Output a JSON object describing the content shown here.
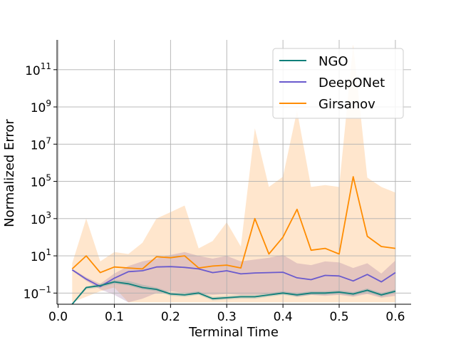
{
  "chart_data": {
    "type": "line",
    "title": "",
    "xlabel": "Terminal Time",
    "ylabel": "Normalized Error",
    "yscale": "log",
    "xlim": [
      -0.002,
      0.628
    ],
    "ylim_log10": [
      -1.6,
      12.6
    ],
    "grid": true,
    "legend_position": "top-right",
    "x_ticks": [
      {
        "value": 0.0,
        "label": "0.0"
      },
      {
        "value": 0.1,
        "label": "0.1"
      },
      {
        "value": 0.2,
        "label": "0.2"
      },
      {
        "value": 0.3,
        "label": "0.3"
      },
      {
        "value": 0.4,
        "label": "0.4"
      },
      {
        "value": 0.5,
        "label": "0.5"
      },
      {
        "value": 0.6,
        "label": "0.6"
      }
    ],
    "y_ticks": [
      {
        "exp": -1,
        "base": "10",
        "sup": "−1"
      },
      {
        "exp": 1,
        "base": "10",
        "sup": "1"
      },
      {
        "exp": 3,
        "base": "10",
        "sup": "3"
      },
      {
        "exp": 5,
        "base": "10",
        "sup": "5"
      },
      {
        "exp": 7,
        "base": "10",
        "sup": "7"
      },
      {
        "exp": 9,
        "base": "10",
        "sup": "9"
      },
      {
        "exp": 11,
        "base": "10",
        "sup": "11"
      }
    ],
    "x": [
      0.025,
      0.05,
      0.075,
      0.1,
      0.125,
      0.15,
      0.175,
      0.2,
      0.225,
      0.25,
      0.275,
      0.3,
      0.325,
      0.35,
      0.375,
      0.4,
      0.425,
      0.45,
      0.475,
      0.5,
      0.525,
      0.55,
      0.575,
      0.6
    ],
    "series": [
      {
        "name": "Girsanov",
        "color": "#ff8c00",
        "band_color": "#ffa64d",
        "log10_values": [
          0.3,
          1.0,
          0.1,
          0.4,
          0.35,
          0.3,
          0.95,
          0.9,
          1.0,
          0.35,
          0.45,
          0.5,
          0.35,
          3.0,
          1.1,
          2.0,
          3.5,
          1.3,
          1.4,
          1.1,
          5.25,
          2.05,
          1.5,
          1.4
        ],
        "log10_upper": [
          0.6,
          3.0,
          0.7,
          1.2,
          1.1,
          1.7,
          3.0,
          3.35,
          3.7,
          1.4,
          1.8,
          2.8,
          1.5,
          7.85,
          4.7,
          5.25,
          8.8,
          4.7,
          4.8,
          4.7,
          12.35,
          5.2,
          4.7,
          4.4
        ],
        "log10_lower": [
          -1.5,
          -1.2,
          -0.9,
          -0.7,
          -1.5,
          -1.5,
          -1.5,
          -1.5,
          -1.5,
          -1.5,
          -1.5,
          -1.5,
          -1.5,
          -1.5,
          -1.5,
          -1.5,
          -1.5,
          -1.5,
          -1.5,
          -1.5,
          -1.5,
          -1.5,
          -1.5,
          -1.5
        ]
      },
      {
        "name": "DeepONet",
        "color": "#6a5acd",
        "band_color": "#9e6e9a",
        "log10_values": [
          0.25,
          -0.25,
          -0.65,
          -0.2,
          0.15,
          0.2,
          0.4,
          0.42,
          0.38,
          0.3,
          0.1,
          0.2,
          0.03,
          0.08,
          0.1,
          0.12,
          -0.18,
          -0.28,
          -0.05,
          -0.08,
          -0.35,
          0.0,
          -0.4,
          0.1
        ],
        "log10_upper": [
          0.3,
          -0.15,
          -0.5,
          0.05,
          0.45,
          0.7,
          0.85,
          1.05,
          1.2,
          1.0,
          0.85,
          1.0,
          0.7,
          0.8,
          0.9,
          1.05,
          0.6,
          0.5,
          0.7,
          0.65,
          0.35,
          0.6,
          0.05,
          0.75
        ],
        "log10_lower": [
          0.2,
          -0.35,
          -0.8,
          -1.1,
          -1.5,
          -1.3,
          -1.0,
          -0.9,
          -1.0,
          -1.05,
          -1.1,
          -1.05,
          -1.1,
          -1.1,
          -1.05,
          -1.0,
          -1.2,
          -1.1,
          -1.15,
          -1.1,
          -1.2,
          -1.05,
          -1.25,
          -1.15
        ]
      },
      {
        "name": "NGO",
        "color": "#0f7f7a",
        "band_color": "#5f9f9a",
        "log10_values": [
          -1.6,
          -0.7,
          -0.6,
          -0.4,
          -0.5,
          -0.7,
          -0.8,
          -1.05,
          -1.1,
          -1.0,
          -1.3,
          -1.25,
          -1.2,
          -1.2,
          -1.1,
          -1.0,
          -1.1,
          -1.0,
          -1.0,
          -0.95,
          -1.05,
          -0.85,
          -1.1,
          -0.9
        ],
        "log10_upper": [
          -1.55,
          -0.65,
          -0.5,
          -0.3,
          -0.35,
          -0.55,
          -0.7,
          -0.95,
          -1.0,
          -0.9,
          -1.2,
          -1.15,
          -1.1,
          -1.1,
          -1.0,
          -0.9,
          -1.0,
          -0.9,
          -0.9,
          -0.85,
          -0.95,
          -0.75,
          -1.0,
          -0.8
        ],
        "log10_lower": [
          -1.65,
          -0.8,
          -0.7,
          -0.5,
          -0.6,
          -0.8,
          -0.9,
          -1.15,
          -1.2,
          -1.1,
          -1.4,
          -1.35,
          -1.3,
          -1.3,
          -1.2,
          -1.1,
          -1.2,
          -1.1,
          -1.1,
          -1.05,
          -1.15,
          -0.95,
          -1.2,
          -1.0
        ]
      }
    ],
    "legend_order": [
      "NGO",
      "DeepONet",
      "Girsanov"
    ]
  }
}
